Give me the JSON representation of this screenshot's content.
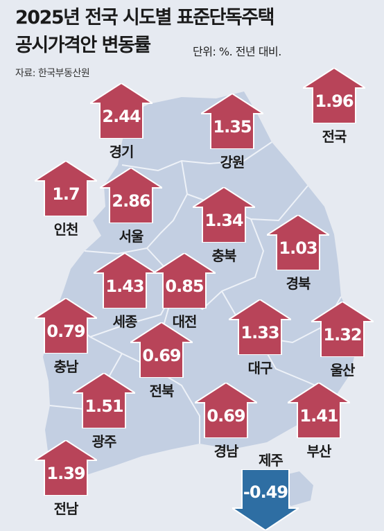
{
  "title_line1": "2025년 전국 시도별 표준단독주택",
  "title_line2": "공시가격안 변동률",
  "unit_note": "단위: %. 전년 대비.",
  "source": "자료: 한국부동산원",
  "colors": {
    "increase": "#b84459",
    "decrease": "#2e6ea3"
  },
  "regions": [
    {
      "name": "경기",
      "value": "2.44",
      "direction": "up"
    },
    {
      "name": "강원",
      "value": "1.35",
      "direction": "up"
    },
    {
      "name": "전국",
      "value": "1.96",
      "direction": "up"
    },
    {
      "name": "인천",
      "value": "1.7",
      "direction": "up"
    },
    {
      "name": "서울",
      "value": "2.86",
      "direction": "up"
    },
    {
      "name": "충북",
      "value": "1.34",
      "direction": "up"
    },
    {
      "name": "경북",
      "value": "1.03",
      "direction": "up"
    },
    {
      "name": "세종",
      "value": "1.43",
      "direction": "up"
    },
    {
      "name": "대전",
      "value": "0.85",
      "direction": "up"
    },
    {
      "name": "충남",
      "value": "0.79",
      "direction": "up"
    },
    {
      "name": "대구",
      "value": "1.33",
      "direction": "up"
    },
    {
      "name": "울산",
      "value": "1.32",
      "direction": "up"
    },
    {
      "name": "전북",
      "value": "0.69",
      "direction": "up"
    },
    {
      "name": "광주",
      "value": "1.51",
      "direction": "up"
    },
    {
      "name": "경남",
      "value": "0.69",
      "direction": "up"
    },
    {
      "name": "부산",
      "value": "1.41",
      "direction": "up"
    },
    {
      "name": "전남",
      "value": "1.39",
      "direction": "up"
    },
    {
      "name": "제주",
      "value": "-0.49",
      "direction": "down"
    }
  ]
}
